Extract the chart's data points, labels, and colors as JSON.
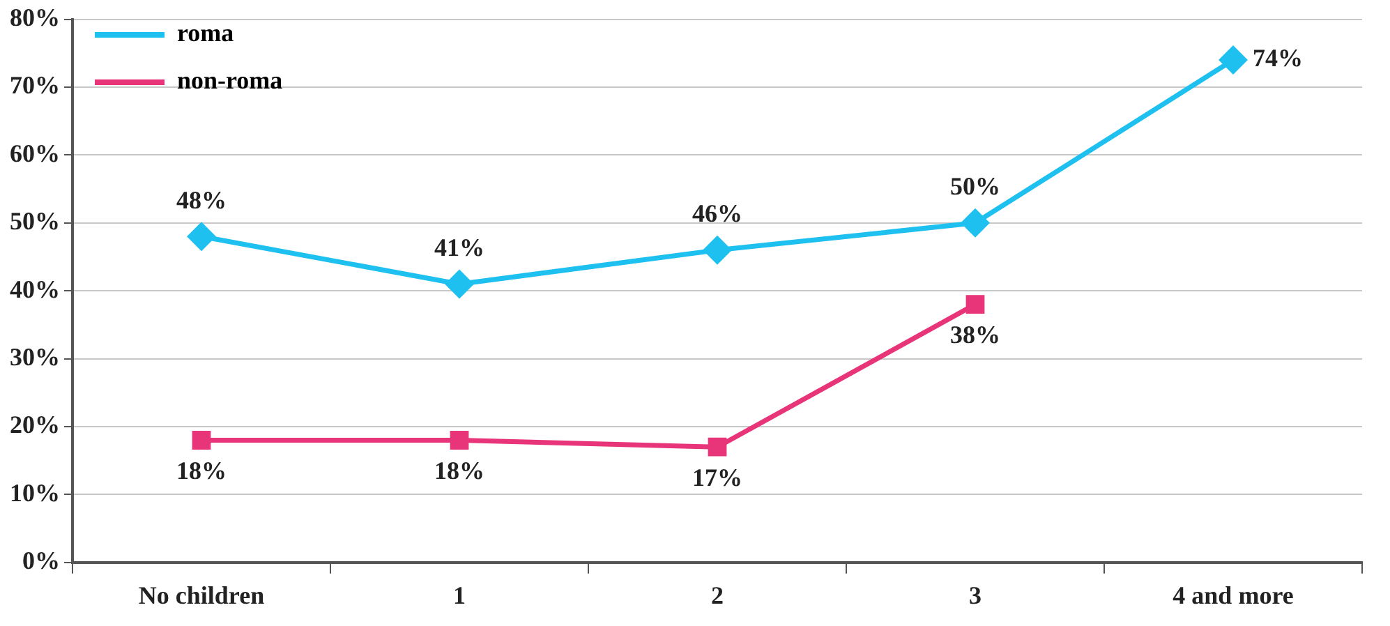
{
  "chart_data": {
    "type": "line",
    "categories": [
      "No children",
      "1",
      "2",
      "3",
      "4 and more"
    ],
    "series": [
      {
        "name": "roma",
        "color": "#1ec0f0",
        "marker": "diamond",
        "values": [
          48,
          41,
          46,
          50,
          74
        ],
        "value_labels": [
          "48%",
          "41%",
          "46%",
          "50%",
          "74%"
        ]
      },
      {
        "name": "non-roma",
        "color": "#e8357a",
        "marker": "square",
        "values": [
          18,
          18,
          17,
          38,
          null
        ],
        "value_labels": [
          "18%",
          "18%",
          "17%",
          "38%",
          null
        ]
      }
    ],
    "ylim": [
      0,
      80
    ],
    "yticks": [
      {
        "value": 0,
        "label": "0%"
      },
      {
        "value": 10,
        "label": "10%"
      },
      {
        "value": 20,
        "label": "20%"
      },
      {
        "value": 30,
        "label": "30%"
      },
      {
        "value": 40,
        "label": "40%"
      },
      {
        "value": 50,
        "label": "50%"
      },
      {
        "value": 60,
        "label": "60%"
      },
      {
        "value": 70,
        "label": "70%"
      },
      {
        "value": 80,
        "label": "80%"
      }
    ],
    "grid": "y",
    "legend": "top left",
    "line_style": "solid"
  }
}
